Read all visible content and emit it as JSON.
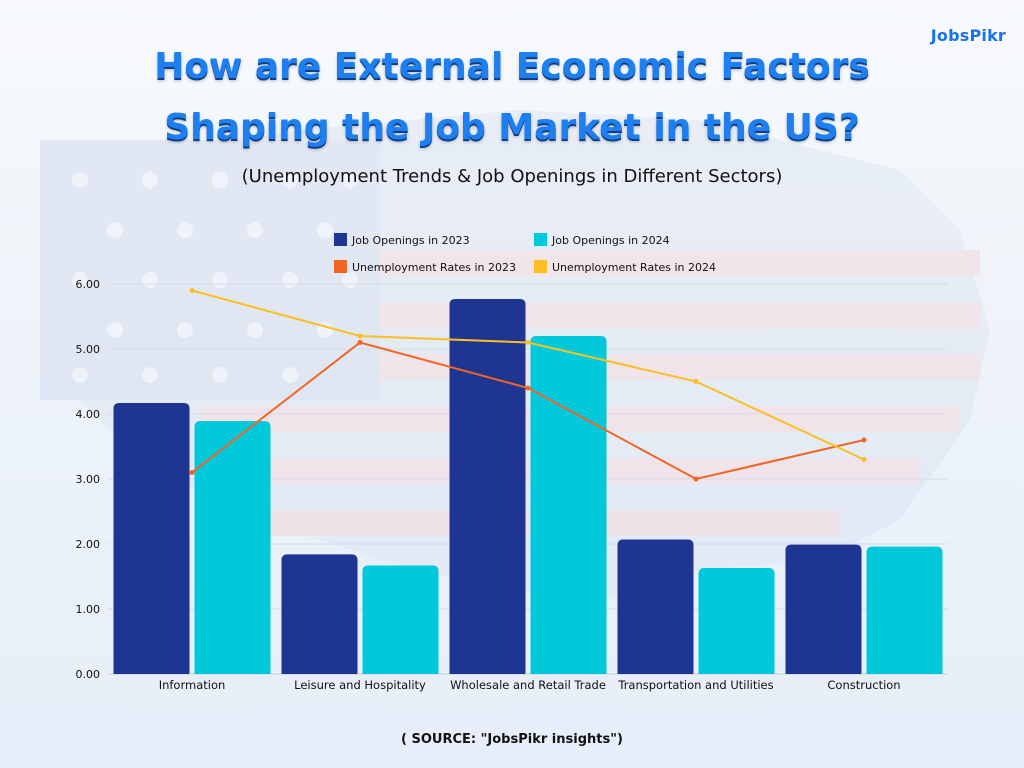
{
  "brand": {
    "logo": "JobsPikr"
  },
  "heading": {
    "line1": "How are External Economic Factors",
    "line2": "Shaping the Job Market in the US?",
    "subtitle": "(Unemployment Trends & Job Openings in Different Sectors)"
  },
  "source": "( SOURCE: \"JobsPikr insights\")",
  "colors": {
    "openings_2023": "#1f3592",
    "openings_2024": "#00c9db",
    "unemp_2023": "#f26522",
    "unemp_2024": "#fbbf24",
    "title": "#1e7ff0"
  },
  "chart_data": {
    "type": "bar",
    "categories": [
      "Information",
      "Leisure and Hospitality",
      "Wholesale and Retail Trade",
      "Transportation and Utilities",
      "Construction"
    ],
    "ylim": [
      0,
      6
    ],
    "yticks": [
      "0.00",
      "1.00",
      "2.00",
      "3.00",
      "4.00",
      "5.00",
      "6.00"
    ],
    "grid": true,
    "legend_position": "top",
    "series": [
      {
        "name": "Job Openings in 2023",
        "kind": "bar",
        "color": "#1f3592",
        "values": [
          4.17,
          1.84,
          5.77,
          2.07,
          1.99
        ]
      },
      {
        "name": "Job Openings in 2024",
        "kind": "bar",
        "color": "#00c9db",
        "values": [
          3.89,
          1.67,
          5.2,
          1.63,
          1.96
        ]
      },
      {
        "name": "Unemployment Rates in 2023",
        "kind": "line",
        "color": "#f26522",
        "values": [
          3.1,
          5.1,
          4.4,
          3.0,
          3.6
        ]
      },
      {
        "name": "Unemployment Rates in 2024",
        "kind": "line",
        "color": "#fbbf24",
        "values": [
          5.9,
          5.2,
          5.1,
          4.5,
          3.3
        ]
      }
    ]
  }
}
